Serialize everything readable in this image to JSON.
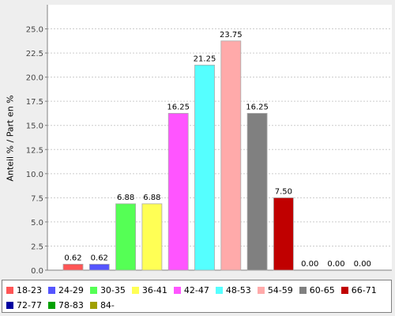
{
  "chart_data": {
    "type": "bar",
    "title": "",
    "xlabel": "",
    "ylabel": "Anteil % / Part en %",
    "categories": [
      "18-23",
      "24-29",
      "30-35",
      "36-41",
      "42-47",
      "48-53",
      "54-59",
      "60-65",
      "66-71",
      "72-77",
      "78-83",
      "84-"
    ],
    "values": [
      0.62,
      0.62,
      6.88,
      6.88,
      16.25,
      21.25,
      23.75,
      16.25,
      7.5,
      0.0,
      0.0,
      0.0
    ],
    "value_labels": [
      "0.62",
      "0.62",
      "6.88",
      "6.88",
      "16.25",
      "21.25",
      "23.75",
      "16.25",
      "7.50",
      "0.00",
      "0.00",
      "0.00"
    ],
    "colors": [
      "#ff5555",
      "#5555ff",
      "#55ff55",
      "#ffff55",
      "#ff55ff",
      "#55ffff",
      "#ffaaaa",
      "#808080",
      "#c00000",
      "#0000a0",
      "#00a000",
      "#a0a000"
    ],
    "ylim": [
      0,
      27.5
    ],
    "yticks": [
      0.0,
      2.5,
      5.0,
      7.5,
      10.0,
      12.5,
      15.0,
      17.5,
      20.0,
      22.5,
      25.0
    ],
    "ytick_labels": [
      "0.0",
      "2.5",
      "5.0",
      "7.5",
      "10.0",
      "12.5",
      "15.0",
      "17.5",
      "20.0",
      "22.5",
      "25.0"
    ],
    "grid": true,
    "legend_position": "bottom"
  }
}
